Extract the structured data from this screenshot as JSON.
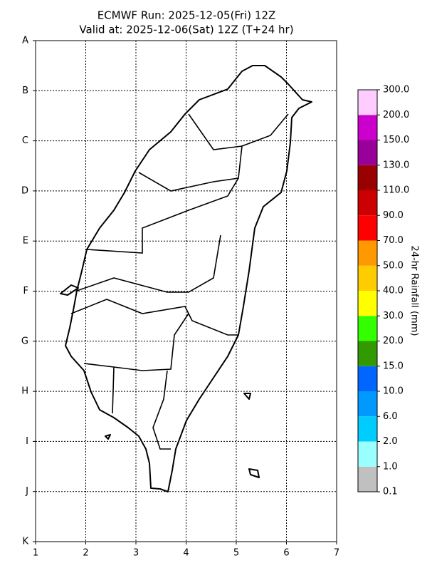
{
  "title_lines": [
    "ECMWF Run: 2025-12-05(Fri) 12Z",
    "Valid at: 2025-12-06(Sat) 12Z (T+24 hr)"
  ],
  "x_ticks": [
    "1",
    "2",
    "3",
    "4",
    "5",
    "6",
    "7"
  ],
  "y_ticks": [
    "A",
    "B",
    "C",
    "D",
    "E",
    "F",
    "G",
    "H",
    "I",
    "J",
    "K"
  ],
  "colorbar": {
    "label": "24-hr Rainfall (mm)",
    "levels": [
      "0.1",
      "1.0",
      "2.0",
      "6.0",
      "10.0",
      "15.0",
      "20.0",
      "30.0",
      "40.0",
      "50.0",
      "70.0",
      "90.0",
      "110.0",
      "130.0",
      "150.0",
      "200.0",
      "300.0"
    ],
    "colors": [
      "#c0c0c0",
      "#99ffff",
      "#00ccff",
      "#0099ff",
      "#0066ff",
      "#339900",
      "#33ff00",
      "#ffff00",
      "#ffcc00",
      "#ff9900",
      "#ff0000",
      "#cc0000",
      "#990000",
      "#990099",
      "#cc00cc",
      "#ffccff"
    ]
  }
}
